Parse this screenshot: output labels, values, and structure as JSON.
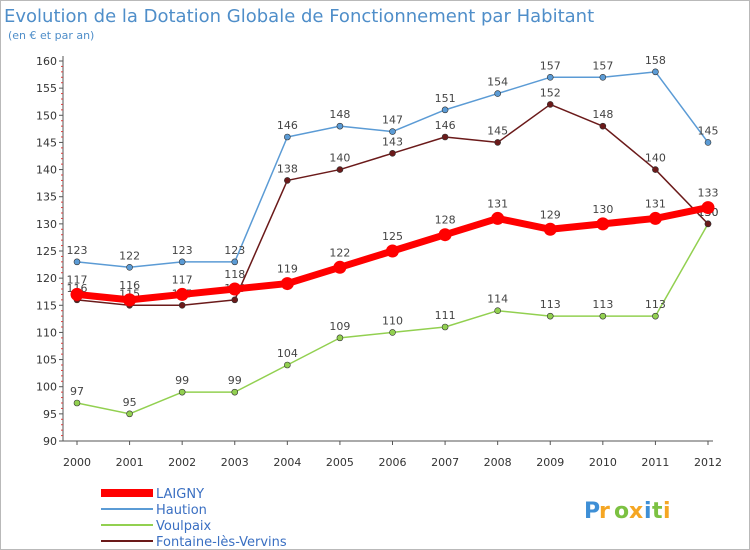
{
  "chart_data": {
    "type": "line",
    "title": "Evolution de la Dotation Globale de Fonctionnement par Habitant",
    "subtitle": "(en € et par an)",
    "x": [
      "2000",
      "2001",
      "2002",
      "2003",
      "2004",
      "2005",
      "2006",
      "2007",
      "2008",
      "2009",
      "2010",
      "2011",
      "2012"
    ],
    "ylim": [
      90,
      160
    ],
    "yticks": [
      90,
      95,
      100,
      105,
      110,
      115,
      120,
      125,
      130,
      135,
      140,
      145,
      150,
      155,
      160
    ],
    "grid": false,
    "legend_position": "bottom-left",
    "series": [
      {
        "name": "Haution",
        "color": "#5b9bd5",
        "values": [
          123,
          122,
          123,
          123,
          146,
          148,
          147,
          151,
          154,
          157,
          157,
          158,
          145
        ]
      },
      {
        "name": "Voulpaix",
        "color": "#92d050",
        "values": [
          97,
          95,
          99,
          99,
          104,
          109,
          110,
          111,
          114,
          113,
          113,
          113,
          130
        ]
      },
      {
        "name": "Fontaine-lès-Vervins",
        "color": "#6b1a1a",
        "values": [
          116,
          115,
          115,
          116,
          138,
          140,
          143,
          146,
          145,
          152,
          148,
          140,
          130
        ]
      },
      {
        "name": "LAIGNY",
        "color": "#ff0000",
        "values": [
          117,
          116,
          117,
          118,
          119,
          122,
          125,
          128,
          131,
          129,
          130,
          131,
          133
        ]
      }
    ],
    "legend_order": [
      "LAIGNY",
      "Haution",
      "Voulpaix",
      "Fontaine-lès-Vervins"
    ]
  },
  "logo": {
    "text": "Proxiti"
  }
}
